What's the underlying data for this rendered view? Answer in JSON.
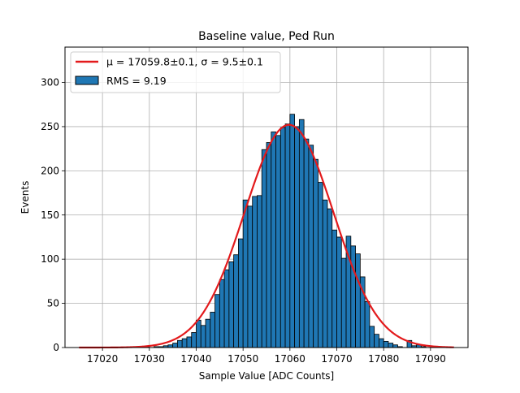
{
  "chart_data": {
    "type": "histogram",
    "title": "Baseline value, Ped Run",
    "xlabel": "Sample Value [ADC Counts]",
    "ylabel": "Events",
    "xlim": [
      17012,
      17098
    ],
    "ylim": [
      0,
      340
    ],
    "xticks": [
      17020,
      17030,
      17040,
      17050,
      17060,
      17070,
      17080,
      17090
    ],
    "yticks": [
      0,
      50,
      100,
      150,
      200,
      250,
      300
    ],
    "grid": true,
    "legend_position": "top-left",
    "histogram": {
      "name": "RMS = 9.19",
      "color": "#1f77b4",
      "edge_color": "#000000",
      "bin_width": 1,
      "bin_starts": [
        17029,
        17030,
        17031,
        17032,
        17033,
        17034,
        17035,
        17036,
        17037,
        17038,
        17039,
        17040,
        17041,
        17042,
        17043,
        17044,
        17045,
        17046,
        17047,
        17048,
        17049,
        17050,
        17051,
        17052,
        17053,
        17054,
        17055,
        17056,
        17057,
        17058,
        17059,
        17060,
        17061,
        17062,
        17063,
        17064,
        17065,
        17066,
        17067,
        17068,
        17069,
        17070,
        17071,
        17072,
        17073,
        17074,
        17075,
        17076,
        17077,
        17078,
        17079,
        17080,
        17081,
        17082,
        17083,
        17084,
        17085,
        17086,
        17087,
        17088,
        17089
      ],
      "counts": [
        1,
        0,
        1,
        1,
        2,
        3,
        5,
        8,
        10,
        12,
        17,
        31,
        25,
        32,
        40,
        60,
        77,
        88,
        97,
        105,
        123,
        167,
        160,
        171,
        172,
        224,
        232,
        244,
        240,
        249,
        253,
        264,
        250,
        258,
        236,
        229,
        213,
        187,
        167,
        157,
        133,
        125,
        101,
        126,
        115,
        106,
        80,
        52,
        24,
        15,
        10,
        7,
        5,
        3,
        1,
        0,
        8,
        2,
        3,
        1,
        0
      ]
    },
    "fit": {
      "name": "$\\mu = 17059.8 \\pm 0.1, \\sigma = 9.5 \\pm 0.1$",
      "color": "#e31a1c",
      "mu": 17059.8,
      "sigma": 9.5,
      "amplitude": 252,
      "x_range": [
        17015,
        17095
      ]
    },
    "legend": [
      {
        "type": "line",
        "label": "μ = 17059.8±0.1, σ = 9.5±0.1",
        "color": "#e31a1c"
      },
      {
        "type": "patch",
        "label": "RMS = 9.19",
        "color": "#1f77b4"
      }
    ]
  }
}
